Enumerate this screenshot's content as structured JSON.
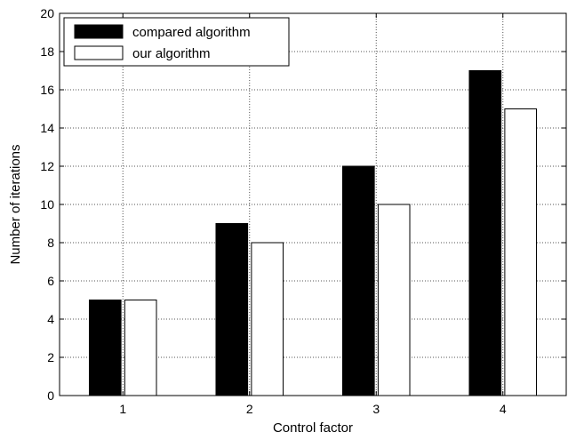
{
  "chart_data": {
    "type": "bar",
    "categories": [
      "1",
      "2",
      "3",
      "4"
    ],
    "series": [
      {
        "name": "compared algorithm",
        "values": [
          5,
          9,
          12,
          17
        ],
        "color": "#000000"
      },
      {
        "name": "our algorithm",
        "values": [
          5,
          8,
          10,
          15
        ],
        "color": "#ffffff"
      }
    ],
    "xlabel": "Control factor",
    "ylabel": "Number of iterations",
    "ylim": [
      0,
      20
    ],
    "yticks": [
      0,
      2,
      4,
      6,
      8,
      10,
      12,
      14,
      16,
      18,
      20
    ],
    "grid": true,
    "legend_position": "top-left"
  }
}
